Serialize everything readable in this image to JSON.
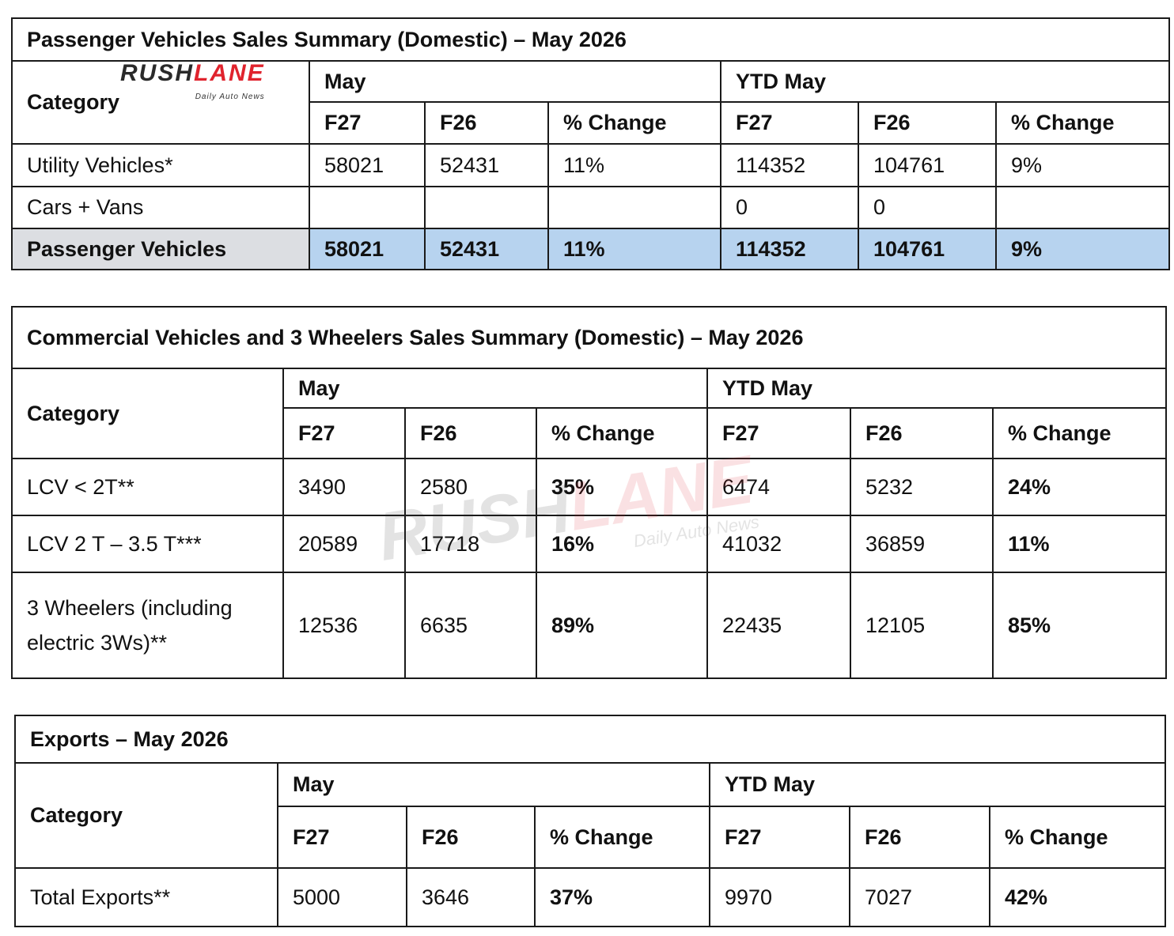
{
  "watermark": {
    "brand_left": "RUSH",
    "brand_right": "LANE",
    "tagline": "Daily Auto News"
  },
  "pv": {
    "title": "Passenger Vehicles Sales Summary (Domestic) – May 2026",
    "category_header": "Category",
    "group_may": "May",
    "group_ytd": "YTD May",
    "cols": [
      "F27",
      "F26",
      "% Change",
      "F27",
      "F26",
      "% Change"
    ],
    "rows": [
      {
        "label": "Utility Vehicles*",
        "values": [
          "58021",
          "52431",
          "11%",
          "114352",
          "104761",
          "9%"
        ]
      },
      {
        "label": "Cars + Vans",
        "values": [
          "",
          "",
          "",
          "0",
          "0",
          ""
        ]
      },
      {
        "label": "Passenger Vehicles",
        "values": [
          "58021",
          "52431",
          "11%",
          "114352",
          "104761",
          "9%"
        ]
      }
    ]
  },
  "cv": {
    "title": "Commercial Vehicles and 3 Wheelers Sales Summary (Domestic) – May 2026",
    "category_header": "Category",
    "group_may": "May",
    "group_ytd": "YTD May",
    "cols": [
      "F27",
      "F26",
      "% Change",
      "F27",
      "F26",
      "% Change"
    ],
    "rows": [
      {
        "label": "LCV < 2T**",
        "values": [
          "3490",
          "2580",
          "35%",
          "6474",
          "5232",
          "24%"
        ]
      },
      {
        "label": "LCV 2 T – 3.5 T***",
        "values": [
          "20589",
          "17718",
          "16%",
          "41032",
          "36859",
          "11%"
        ]
      },
      {
        "label": "3 Wheelers (including electric 3Ws)**",
        "values": [
          "12536",
          "6635",
          "89%",
          "22435",
          "12105",
          "85%"
        ]
      }
    ]
  },
  "ex": {
    "title": "Exports – May 2026",
    "category_header": "Category",
    "group_may": "May",
    "group_ytd": "YTD May",
    "cols": [
      "F27",
      "F26",
      "% Change",
      "F27",
      "F26",
      "% Change"
    ],
    "rows": [
      {
        "label": "Total Exports**",
        "values": [
          "5000",
          "3646",
          "37%",
          "9970",
          "7027",
          "42%"
        ]
      }
    ]
  }
}
